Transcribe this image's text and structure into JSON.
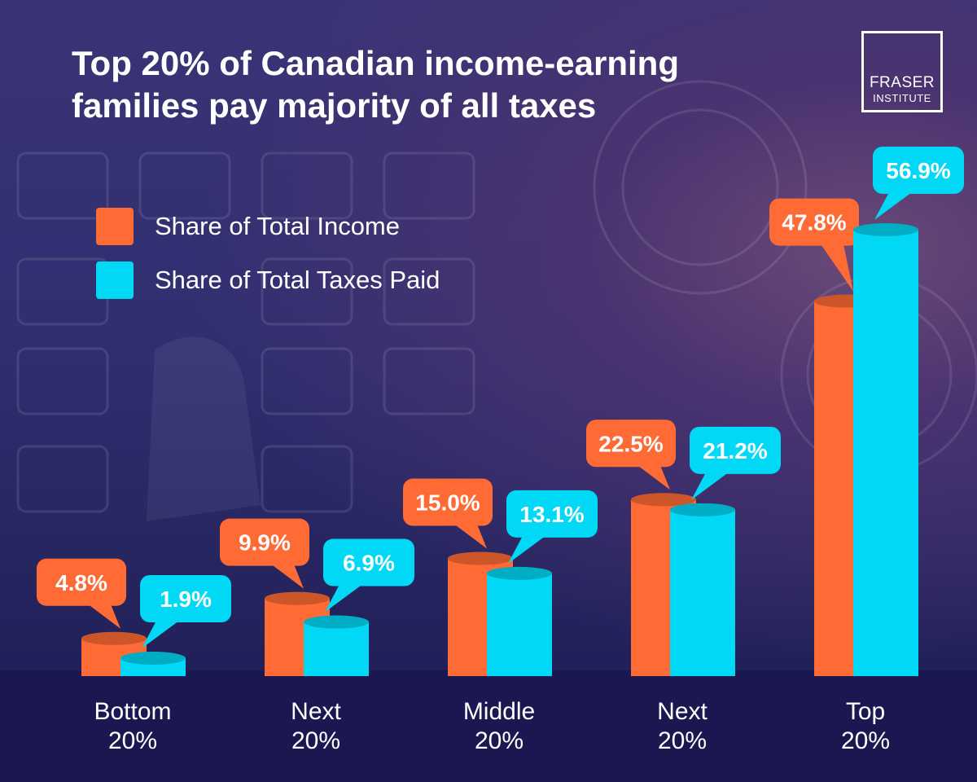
{
  "title_lines": [
    "Top 20% of Canadian income-earning",
    "families pay majority of all taxes"
  ],
  "logo": {
    "line1": "FRASER",
    "line2": "INSTITUTE"
  },
  "colors": {
    "income": "#ff6a35",
    "taxes": "#00d8f5",
    "background": "#2f2f70",
    "floor": "#1b1751"
  },
  "chart_data": {
    "type": "bar",
    "categories": [
      [
        "Bottom",
        "20%"
      ],
      [
        "Next",
        "20%"
      ],
      [
        "Middle",
        "20%"
      ],
      [
        "Next",
        "20%"
      ],
      [
        "Top",
        "20%"
      ]
    ],
    "series": [
      {
        "name": "Share of Total Income",
        "values": [
          4.8,
          9.9,
          15.0,
          22.5,
          47.8
        ],
        "labels": [
          "4.8%",
          "9.9%",
          "15.0%",
          "22.5%",
          "47.8%"
        ]
      },
      {
        "name": "Share of Total Taxes Paid",
        "values": [
          1.9,
          6.9,
          13.1,
          21.2,
          56.9
        ],
        "labels": [
          "1.9%",
          "6.9%",
          "13.1%",
          "21.2%",
          "56.9%"
        ]
      }
    ],
    "ylim": [
      0,
      56.9
    ],
    "legend_position": "top-left"
  }
}
